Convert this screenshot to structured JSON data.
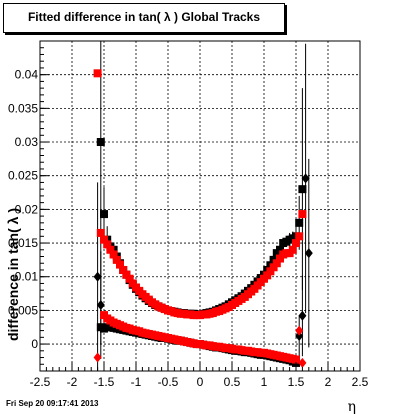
{
  "footer": {
    "timestamp": "Fri Sep 20 09:17:41 2013"
  },
  "chart_data": {
    "type": "scatter",
    "title": "Fitted difference in tan( λ )  Global Tracks",
    "xlabel": "η",
    "ylabel": "difference in tan( λ )",
    "xlim": [
      -2.5,
      2.5
    ],
    "ylim": [
      -0.004,
      0.045
    ],
    "xticks": [
      -2.5,
      -2,
      -1.5,
      -1,
      -0.5,
      0,
      0.5,
      1,
      1.5,
      2,
      2.5
    ],
    "xtick_labels": [
      "-2.5",
      "-2",
      "-1.5",
      "-1",
      "-0.5",
      "0",
      "0.5",
      "1",
      "1.5",
      "2",
      "2.5"
    ],
    "yticks": [
      0,
      0.005,
      0.01,
      0.015,
      0.02,
      0.025,
      0.03,
      0.035,
      0.04
    ],
    "ytick_labels": [
      "0",
      "0.005",
      "0.01",
      "0.015",
      "0.02",
      "0.025",
      "0.03",
      "0.035",
      "0.04"
    ],
    "grid": true,
    "colors": {
      "black_series": "#000000",
      "red_series": "#ff0000"
    },
    "series": [
      {
        "marker": "square",
        "color": "#000000",
        "x": [
          -1.55,
          -1.5,
          -1.45,
          -1.4,
          -1.35,
          -1.3,
          -1.25,
          -1.2,
          -1.15,
          -1.1,
          -1.05,
          -1.0,
          -0.95,
          -0.9,
          -0.85,
          -0.8,
          -0.75,
          -0.7,
          -0.65,
          -0.6,
          -0.55,
          -0.5,
          -0.45,
          -0.4,
          -0.35,
          -0.3,
          -0.25,
          -0.2,
          -0.15,
          -0.1,
          -0.05,
          0.0,
          0.05,
          0.1,
          0.15,
          0.2,
          0.25,
          0.3,
          0.35,
          0.4,
          0.45,
          0.5,
          0.55,
          0.6,
          0.65,
          0.7,
          0.75,
          0.8,
          0.85,
          0.9,
          0.95,
          1.0,
          1.05,
          1.1,
          1.15,
          1.2,
          1.25,
          1.3,
          1.35,
          1.4,
          1.45,
          1.5,
          1.55,
          1.6
        ],
        "y": [
          0.03,
          0.0193,
          0.0155,
          0.0145,
          0.014,
          0.013,
          0.012,
          0.011,
          0.0103,
          0.0095,
          0.0088,
          0.0082,
          0.0077,
          0.0072,
          0.0068,
          0.0064,
          0.0061,
          0.0058,
          0.0056,
          0.0054,
          0.0052,
          0.005,
          0.0049,
          0.0048,
          0.0047,
          0.0046,
          0.0046,
          0.0045,
          0.0045,
          0.0045,
          0.0044,
          0.0044,
          0.0045,
          0.0046,
          0.0047,
          0.0048,
          0.005,
          0.0052,
          0.0054,
          0.0056,
          0.0059,
          0.0062,
          0.0065,
          0.0068,
          0.0071,
          0.0075,
          0.0079,
          0.0083,
          0.0088,
          0.0093,
          0.0098,
          0.0103,
          0.011,
          0.0117,
          0.0125,
          0.0135,
          0.014,
          0.015,
          0.0152,
          0.0155,
          0.0157,
          0.016,
          0.018,
          0.023
        ],
        "err": [
          0.03,
          0.004,
          0.002,
          0.001,
          0.001,
          0.001,
          0.0005,
          0.0005,
          0.0005,
          0.0005,
          0.0005,
          0.0005,
          0.0005,
          0.0005,
          0.0005,
          0.0005,
          0.0005,
          0.0005,
          0.0005,
          0.0005,
          0.0005,
          0.0005,
          0.0005,
          0.0005,
          0.0005,
          0.0005,
          0.0005,
          0.0005,
          0.0005,
          0.0005,
          0.0005,
          0.0005,
          0.0005,
          0.0005,
          0.0005,
          0.0005,
          0.0005,
          0.0005,
          0.0005,
          0.0005,
          0.0005,
          0.0005,
          0.0005,
          0.0005,
          0.0005,
          0.0005,
          0.0005,
          0.0005,
          0.0005,
          0.0005,
          0.0005,
          0.0005,
          0.0005,
          0.0005,
          0.0005,
          0.0005,
          0.0005,
          0.0005,
          0.0005,
          0.001,
          0.001,
          0.002,
          0.004,
          0.015
        ]
      },
      {
        "marker": "square",
        "color": "#ff0000",
        "x": [
          -1.6,
          -1.55,
          -1.5,
          -1.45,
          -1.4,
          -1.35,
          -1.3,
          -1.25,
          -1.2,
          -1.15,
          -1.1,
          -1.05,
          -1.0,
          -0.95,
          -0.9,
          -0.85,
          -0.8,
          -0.75,
          -0.7,
          -0.65,
          -0.6,
          -0.55,
          -0.5,
          -0.45,
          -0.4,
          -0.35,
          -0.3,
          -0.25,
          -0.2,
          -0.15,
          -0.1,
          -0.05,
          0.0,
          0.05,
          0.1,
          0.15,
          0.2,
          0.25,
          0.3,
          0.35,
          0.4,
          0.45,
          0.5,
          0.55,
          0.6,
          0.65,
          0.7,
          0.75,
          0.8,
          0.85,
          0.9,
          0.95,
          1.0,
          1.05,
          1.1,
          1.15,
          1.2,
          1.25,
          1.3,
          1.35,
          1.4,
          1.45,
          1.5,
          1.55,
          1.6
        ],
        "y": [
          0.0402,
          0.0165,
          0.0155,
          0.0148,
          0.014,
          0.0133,
          0.0125,
          0.0118,
          0.011,
          0.0103,
          0.0097,
          0.009,
          0.0084,
          0.0079,
          0.0074,
          0.007,
          0.0066,
          0.0062,
          0.0059,
          0.0056,
          0.0054,
          0.0052,
          0.005,
          0.0049,
          0.0047,
          0.0046,
          0.0045,
          0.0045,
          0.0044,
          0.0044,
          0.0043,
          0.0043,
          0.0043,
          0.0044,
          0.0044,
          0.0045,
          0.0046,
          0.0048,
          0.0049,
          0.0051,
          0.0053,
          0.0055,
          0.0058,
          0.0061,
          0.0064,
          0.0067,
          0.007,
          0.0074,
          0.0078,
          0.0082,
          0.0087,
          0.0092,
          0.0097,
          0.0102,
          0.0108,
          0.0114,
          0.012,
          0.0127,
          0.0133,
          0.0135,
          0.0135,
          0.014,
          0.015,
          0.016,
          0.0193
        ]
      },
      {
        "marker": "square",
        "color": "#000000",
        "x": [
          -1.55,
          -1.5,
          -1.45,
          -1.4,
          -1.35,
          -1.3,
          -1.25,
          -1.2,
          -1.15,
          -1.1,
          -1.05,
          -1.0,
          -0.95,
          -0.9,
          -0.85,
          -0.8,
          -0.75,
          -0.7,
          -0.65,
          -0.6,
          -0.55,
          -0.5,
          -0.45,
          -0.4,
          -0.35,
          -0.3,
          -0.25,
          -0.2,
          -0.15,
          -0.1,
          -0.05,
          0.0,
          0.05,
          0.1,
          0.15,
          0.2,
          0.25,
          0.3,
          0.35,
          0.4,
          0.45,
          0.5,
          0.55,
          0.6,
          0.65,
          0.7,
          0.75,
          0.8,
          0.85,
          0.9,
          0.95,
          1.0,
          1.05,
          1.1,
          1.15,
          1.2,
          1.25,
          1.3,
          1.35,
          1.4,
          1.45,
          1.5
        ],
        "y": [
          0.0025,
          0.0023,
          0.0025,
          0.0025,
          0.0024,
          0.0023,
          0.0022,
          0.0021,
          0.002,
          0.0019,
          0.0018,
          0.0017,
          0.0016,
          0.0015,
          0.0014,
          0.0013,
          0.0012,
          0.0011,
          0.001,
          0.0009,
          0.0009,
          0.0008,
          0.0007,
          0.0006,
          0.0005,
          0.0005,
          0.0004,
          0.0003,
          0.0002,
          0.0001,
          0.0,
          0.0,
          -0.0001,
          -0.0002,
          -0.0003,
          -0.0004,
          -0.0005,
          -0.0005,
          -0.0006,
          -0.0007,
          -0.0008,
          -0.0009,
          -0.001,
          -0.001,
          -0.0011,
          -0.0012,
          -0.0012,
          -0.0013,
          -0.0014,
          -0.0015,
          -0.0016,
          -0.0016,
          -0.0017,
          -0.0018,
          -0.0019,
          -0.002,
          -0.0021,
          -0.0022,
          -0.0023,
          -0.0024,
          -0.0026,
          -0.0028
        ]
      },
      {
        "marker": "square",
        "color": "#ff0000",
        "x": [
          -1.5,
          -1.45,
          -1.4,
          -1.35,
          -1.3,
          -1.25,
          -1.2,
          -1.15,
          -1.1,
          -1.05,
          -1.0,
          -0.95,
          -0.9,
          -0.85,
          -0.8,
          -0.75,
          -0.7,
          -0.65,
          -0.6,
          -0.55,
          -0.5,
          -0.45,
          -0.4,
          -0.35,
          -0.3,
          -0.25,
          -0.2,
          -0.15,
          -0.1,
          -0.05,
          0.0,
          0.05,
          0.1,
          0.15,
          0.2,
          0.25,
          0.3,
          0.35,
          0.4,
          0.45,
          0.5,
          0.55,
          0.6,
          0.65,
          0.7,
          0.75,
          0.8,
          0.85,
          0.9,
          0.95,
          1.0,
          1.05,
          1.1,
          1.15,
          1.2,
          1.25,
          1.3,
          1.35,
          1.4,
          1.45,
          1.5
        ],
        "y": [
          0.0043,
          0.0038,
          0.0035,
          0.0032,
          0.003,
          0.0028,
          0.0026,
          0.0024,
          0.0023,
          0.0021,
          0.002,
          0.0019,
          0.0017,
          0.0016,
          0.0015,
          0.0014,
          0.0013,
          0.0012,
          0.0011,
          0.001,
          0.0009,
          0.0008,
          0.0007,
          0.0006,
          0.0005,
          0.0004,
          0.0003,
          0.0002,
          0.0001,
          0.0,
          0.0,
          -0.0001,
          -0.0002,
          -0.0002,
          -0.0003,
          -0.0004,
          -0.0004,
          -0.0005,
          -0.0006,
          -0.0006,
          -0.0007,
          -0.0008,
          -0.0008,
          -0.0009,
          -0.001,
          -0.001,
          -0.0011,
          -0.0012,
          -0.0012,
          -0.0013,
          -0.0013,
          -0.0014,
          -0.0015,
          -0.0016,
          -0.0017,
          -0.0018,
          -0.0019,
          -0.002,
          -0.0021,
          -0.0022,
          -0.0023
        ]
      },
      {
        "marker": "diamond",
        "color": "#000000",
        "x": [
          -1.6,
          -1.55,
          1.55,
          1.6,
          1.65,
          1.7
        ],
        "y": [
          0.01,
          0.0058,
          0.0012,
          0.0042,
          0.0246,
          0.0135
        ],
        "err": [
          0.014,
          0.008,
          0.003,
          0.006,
          0.02,
          0.014
        ]
      },
      {
        "marker": "diamond",
        "color": "#ff0000",
        "x": [
          -1.6,
          1.55,
          1.6
        ],
        "y": [
          -0.002,
          0.002,
          -0.0028
        ]
      }
    ]
  }
}
